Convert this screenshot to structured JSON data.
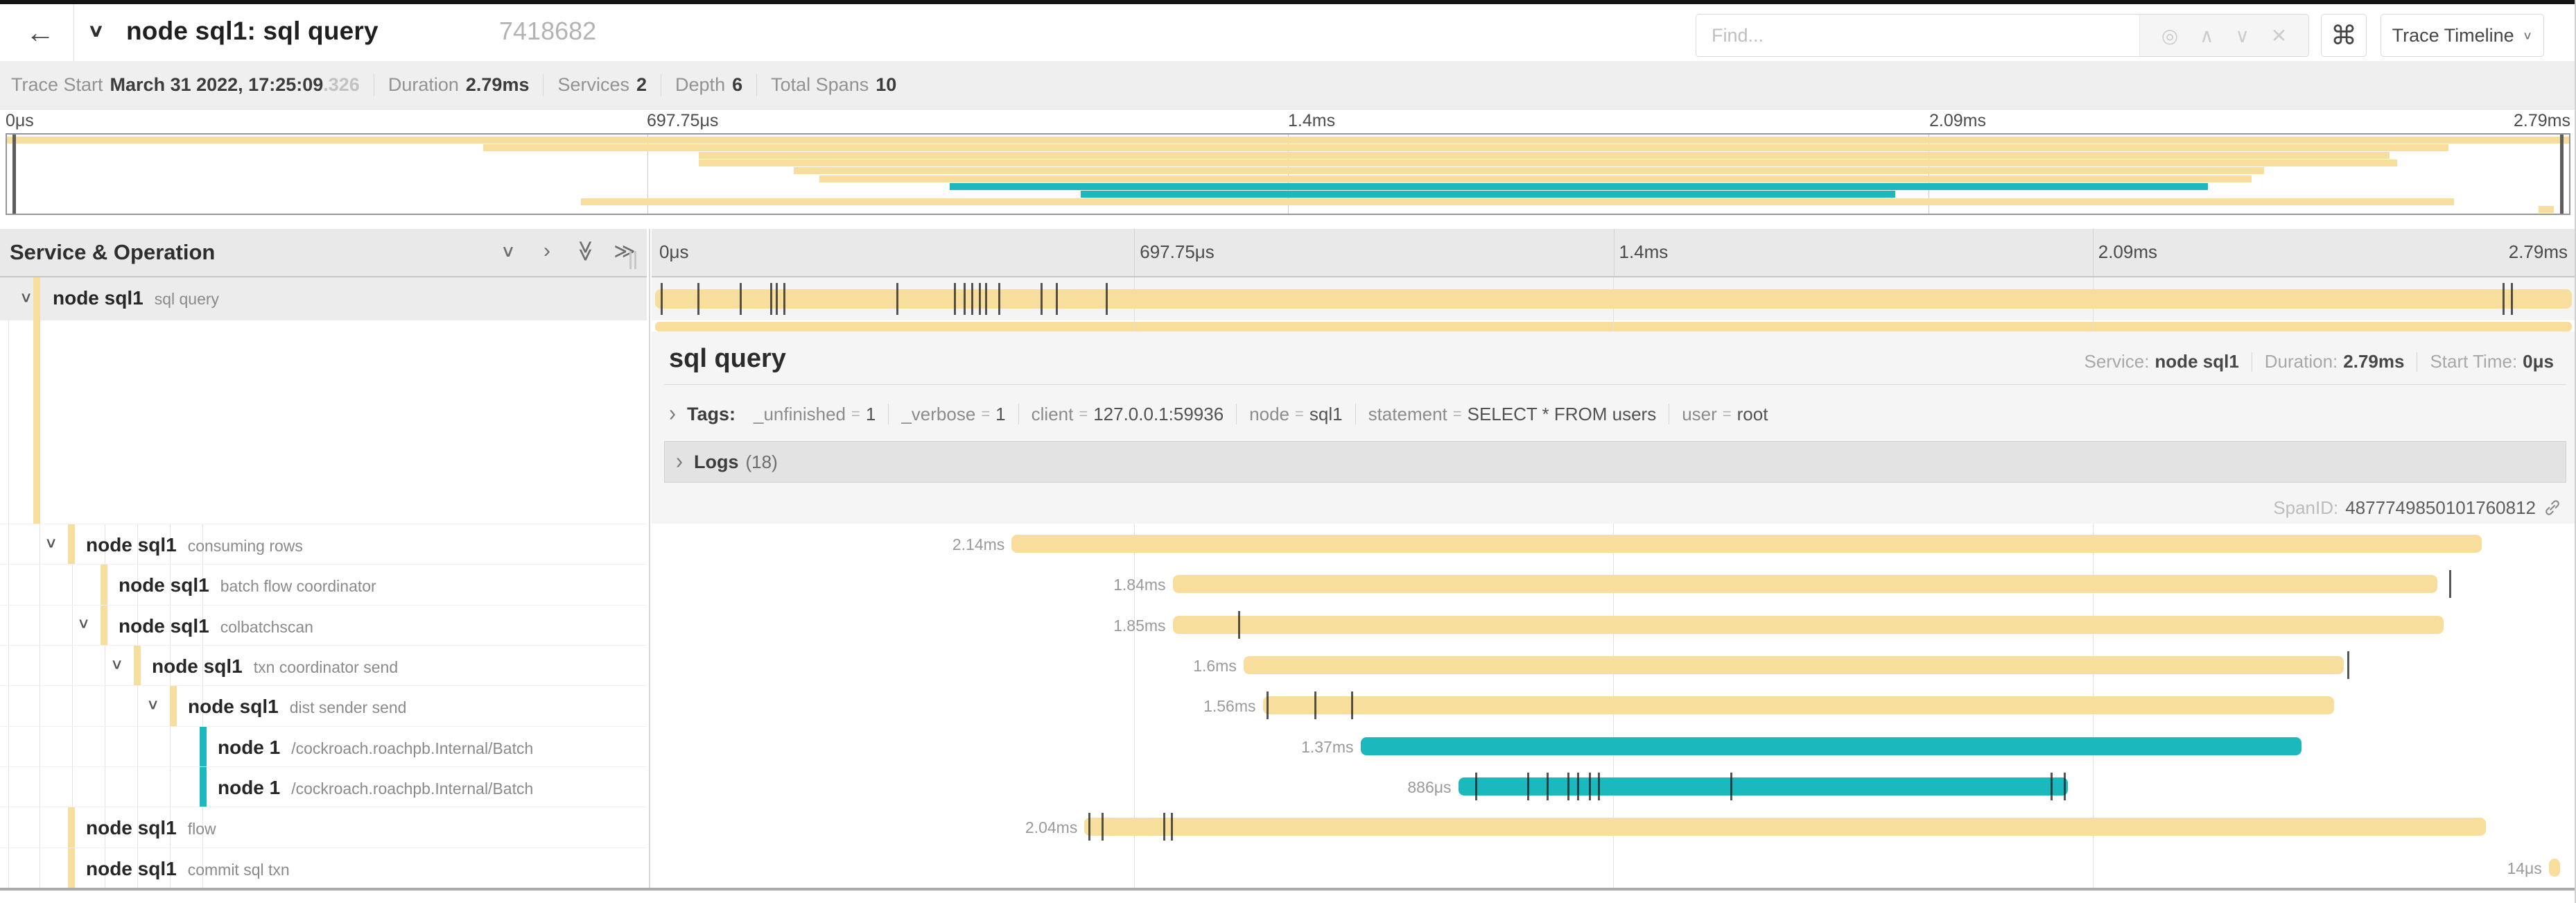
{
  "header": {
    "back_icon": "←",
    "collapse_chevron": "∨",
    "title": "node sql1: sql query",
    "trace_id": "7418682",
    "find_placeholder": "Find...",
    "kbd_icon": "⌘",
    "view_dropdown_label": "Trace Timeline",
    "view_dropdown_chevron": "∨"
  },
  "trace_info": {
    "start_label": "Trace Start",
    "start_value": "March 31 2022, 17:25:09",
    "start_fraction": ".326",
    "duration_label": "Duration",
    "duration_value": "2.79ms",
    "services_label": "Services",
    "services_value": "2",
    "depth_label": "Depth",
    "depth_value": "6",
    "total_spans_label": "Total Spans",
    "total_spans_value": "10"
  },
  "timeline_ticks": [
    "0μs",
    "697.75μs",
    "1.4ms",
    "2.09ms",
    "2.79ms"
  ],
  "left_panel": {
    "header": "Service & Operation"
  },
  "detail": {
    "title": "sql query",
    "service_label": "Service:",
    "service_value": "node sql1",
    "duration_label": "Duration:",
    "duration_value": "2.79ms",
    "start_time_label": "Start Time:",
    "start_time_value": "0μs",
    "tags_label": "Tags:",
    "tags": [
      {
        "key": "_unfinished",
        "value": "1"
      },
      {
        "key": "_verbose",
        "value": "1"
      },
      {
        "key": "client",
        "value": "127.0.0.1:59936"
      },
      {
        "key": "node",
        "value": "sql1"
      },
      {
        "key": "statement",
        "value": "SELECT * FROM users"
      },
      {
        "key": "user",
        "value": "root"
      }
    ],
    "logs_label": "Logs",
    "logs_count": "(18)",
    "span_id_label": "SpanID:",
    "span_id_value": "4877749850101760812"
  },
  "colors": {
    "span_tan": "#F8DE9C",
    "span_teal": "#1BB8BE"
  },
  "spans": [
    {
      "service": "node sql1",
      "operation": "sql query",
      "level": 0,
      "color": "tan",
      "start_pct": 0,
      "width_pct": 100,
      "duration_label": "",
      "chevron": true,
      "ticks": [
        0.3,
        2.2,
        4.4,
        6.0,
        6.3,
        6.7,
        12.6,
        15.6,
        16.1,
        16.5,
        16.9,
        17.2,
        17.9,
        20.1,
        20.9,
        23.5,
        96.4,
        96.8
      ]
    },
    {
      "service": "node sql1",
      "operation": "consuming rows",
      "level": 1,
      "color": "tan",
      "start_pct": 18.6,
      "width_pct": 76.7,
      "duration_label": "2.14ms",
      "chevron": true,
      "ticks": []
    },
    {
      "service": "node sql1",
      "operation": "batch flow coordinator",
      "level": 2,
      "color": "tan",
      "start_pct": 27.0,
      "width_pct": 66.0,
      "duration_label": "1.84ms",
      "chevron": false,
      "ticks": [
        93.6
      ]
    },
    {
      "service": "node sql1",
      "operation": "colbatchscan",
      "level": 2,
      "color": "tan",
      "start_pct": 27.0,
      "width_pct": 66.3,
      "duration_label": "1.85ms",
      "chevron": true,
      "ticks": [
        30.4
      ]
    },
    {
      "service": "node sql1",
      "operation": "txn coordinator send",
      "level": 3,
      "color": "tan",
      "start_pct": 30.7,
      "width_pct": 57.4,
      "duration_label": "1.6ms",
      "chevron": true,
      "ticks": [
        88.3
      ]
    },
    {
      "service": "node sql1",
      "operation": "dist sender send",
      "level": 4,
      "color": "tan",
      "start_pct": 31.7,
      "width_pct": 55.9,
      "duration_label": "1.56ms",
      "chevron": true,
      "ticks": [
        31.9,
        34.4,
        36.3
      ]
    },
    {
      "service": "node 1",
      "operation": "/cockroach.roachpb.Internal/Batch",
      "level": 5,
      "color": "teal",
      "start_pct": 36.8,
      "width_pct": 49.1,
      "duration_label": "1.37ms",
      "chevron": false,
      "ticks": []
    },
    {
      "service": "node 1",
      "operation": "/cockroach.roachpb.Internal/Batch",
      "level": 5,
      "color": "teal",
      "start_pct": 41.9,
      "width_pct": 31.8,
      "duration_label": "886μs",
      "chevron": false,
      "ticks": [
        42.8,
        45.5,
        46.5,
        47.6,
        48.1,
        48.7,
        49.2,
        56.1,
        72.8,
        73.5
      ]
    },
    {
      "service": "node sql1",
      "operation": "flow",
      "level": 1,
      "color": "tan",
      "start_pct": 22.4,
      "width_pct": 73.1,
      "duration_label": "2.04ms",
      "chevron": false,
      "ticks": [
        22.6,
        23.3,
        26.5,
        26.9
      ]
    },
    {
      "service": "node sql1",
      "operation": "commit sql txn",
      "level": 1,
      "color": "tan",
      "start_pct": 98.8,
      "width_pct": 0.6,
      "duration_label": "14μs",
      "chevron": false,
      "ticks": []
    }
  ],
  "icons": {
    "find_target": "◎",
    "find_prev": "∧",
    "find_next": "∨",
    "find_clear": "✕",
    "collapse_one": "∨",
    "expand_one": "›",
    "collapse_all": "≫",
    "expand_all": "≫"
  }
}
